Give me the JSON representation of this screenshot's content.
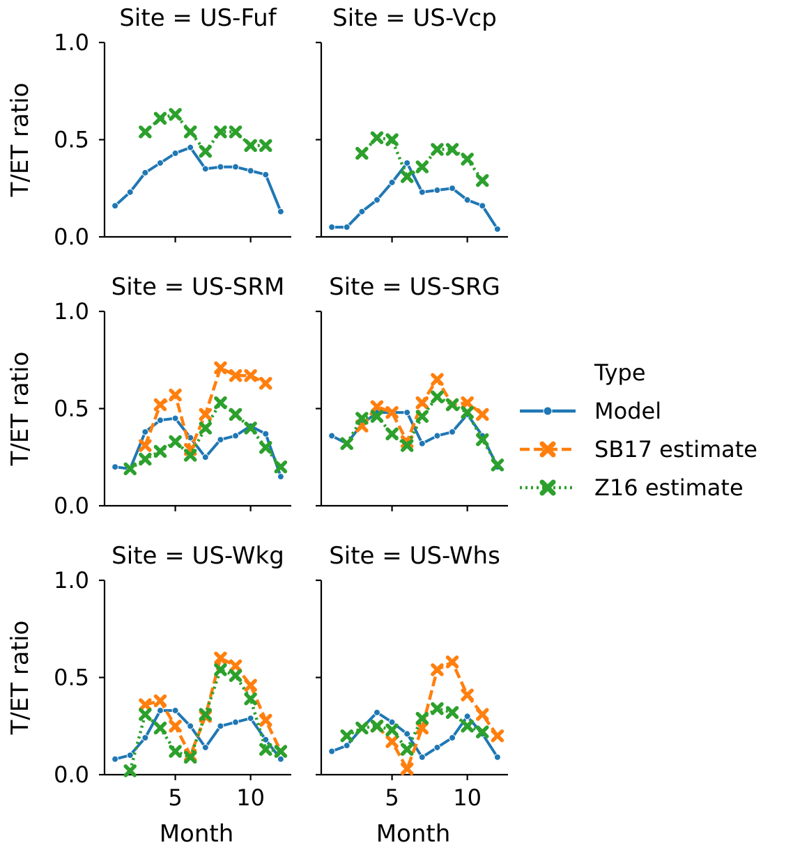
{
  "chart_data": {
    "type": "line",
    "ylabel": "T/ET ratio",
    "xlabel": "Month",
    "ylim": [
      0,
      1
    ],
    "xlim": [
      0.3,
      12.7
    ],
    "yticks": [
      "0.0",
      "0.5",
      "1.0"
    ],
    "xticks": [
      "5",
      "10"
    ],
    "legend": {
      "title": "Type",
      "position": "right",
      "entries": [
        "Model",
        "SB17 estimate",
        "Z16 estimate"
      ]
    },
    "colors": {
      "Model": "#1f77b4",
      "SB17 estimate": "#ff7f0e",
      "Z16 estimate": "#2ca02c"
    },
    "panels": [
      {
        "title": "Site = US-Fuf",
        "series": [
          {
            "name": "Model",
            "x": [
              1,
              2,
              3,
              4,
              5,
              6,
              7,
              8,
              9,
              10,
              11,
              12
            ],
            "y": [
              0.16,
              0.23,
              0.33,
              0.38,
              0.43,
              0.46,
              0.35,
              0.36,
              0.36,
              0.34,
              0.32,
              0.13
            ]
          },
          {
            "name": "Z16 estimate",
            "x": [
              3,
              4,
              5,
              6,
              7,
              8,
              9,
              10,
              11
            ],
            "y": [
              0.54,
              0.61,
              0.63,
              0.54,
              0.44,
              0.54,
              0.54,
              0.47,
              0.47
            ]
          }
        ]
      },
      {
        "title": "Site = US-Vcp",
        "series": [
          {
            "name": "Model",
            "x": [
              1,
              2,
              3,
              4,
              5,
              6,
              7,
              8,
              9,
              10,
              11,
              12
            ],
            "y": [
              0.05,
              0.05,
              0.13,
              0.19,
              0.28,
              0.38,
              0.23,
              0.24,
              0.25,
              0.19,
              0.16,
              0.04
            ]
          },
          {
            "name": "Z16 estimate",
            "x": [
              3,
              4,
              5,
              6,
              7,
              8,
              9,
              10,
              11
            ],
            "y": [
              0.43,
              0.51,
              0.5,
              0.31,
              0.36,
              0.45,
              0.45,
              0.4,
              0.29
            ]
          }
        ]
      },
      {
        "title": "Site = US-SRM",
        "series": [
          {
            "name": "Model",
            "x": [
              1,
              2,
              3,
              4,
              5,
              6,
              7,
              8,
              9,
              10,
              11,
              12
            ],
            "y": [
              0.2,
              0.19,
              0.38,
              0.44,
              0.45,
              0.35,
              0.25,
              0.34,
              0.36,
              0.41,
              0.37,
              0.15
            ]
          },
          {
            "name": "SB17 estimate",
            "x": [
              3,
              4,
              5,
              6,
              7,
              8,
              9,
              10,
              11
            ],
            "y": [
              0.31,
              0.52,
              0.57,
              0.29,
              0.47,
              0.71,
              0.67,
              0.67,
              0.63
            ]
          },
          {
            "name": "Z16 estimate",
            "x": [
              2,
              3,
              4,
              5,
              6,
              7,
              8,
              9,
              10,
              11,
              12
            ],
            "y": [
              0.19,
              0.24,
              0.28,
              0.33,
              0.26,
              0.4,
              0.53,
              0.47,
              0.4,
              0.3,
              0.2
            ]
          }
        ]
      },
      {
        "title": "Site = US-SRG",
        "series": [
          {
            "name": "Model",
            "x": [
              1,
              2,
              3,
              4,
              5,
              6,
              7,
              8,
              9,
              10,
              11,
              12
            ],
            "y": [
              0.36,
              0.32,
              0.42,
              0.48,
              0.48,
              0.48,
              0.32,
              0.36,
              0.38,
              0.47,
              0.36,
              0.2
            ]
          },
          {
            "name": "SB17 estimate",
            "x": [
              3,
              4,
              5,
              6,
              7,
              8,
              9,
              10,
              11
            ],
            "y": [
              0.41,
              0.51,
              0.48,
              0.33,
              0.53,
              0.65,
              0.52,
              0.53,
              0.47
            ]
          },
          {
            "name": "Z16 estimate",
            "x": [
              2,
              3,
              4,
              5,
              6,
              7,
              8,
              9,
              10,
              11,
              12
            ],
            "y": [
              0.32,
              0.45,
              0.46,
              0.37,
              0.31,
              0.46,
              0.56,
              0.52,
              0.48,
              0.34,
              0.21
            ]
          }
        ]
      },
      {
        "title": "Site = US-Wkg",
        "series": [
          {
            "name": "Model",
            "x": [
              1,
              2,
              3,
              4,
              5,
              6,
              7,
              8,
              9,
              10,
              11,
              12
            ],
            "y": [
              0.08,
              0.1,
              0.19,
              0.33,
              0.33,
              0.25,
              0.14,
              0.25,
              0.27,
              0.29,
              0.18,
              0.08
            ]
          },
          {
            "name": "SB17 estimate",
            "x": [
              3,
              4,
              5,
              6,
              7,
              8,
              9,
              10,
              11,
              12
            ],
            "y": [
              0.36,
              0.38,
              0.25,
              0.1,
              0.3,
              0.6,
              0.56,
              0.46,
              0.28,
              0.12
            ]
          },
          {
            "name": "Z16 estimate",
            "x": [
              2,
              3,
              4,
              5,
              6,
              7,
              8,
              9,
              10,
              11,
              12
            ],
            "y": [
              0.02,
              0.31,
              0.24,
              0.12,
              0.09,
              0.31,
              0.54,
              0.51,
              0.39,
              0.13,
              0.12
            ]
          }
        ]
      },
      {
        "title": "Site = US-Whs",
        "series": [
          {
            "name": "Model",
            "x": [
              1,
              2,
              3,
              4,
              5,
              6,
              7,
              8,
              9,
              10,
              11,
              12
            ],
            "y": [
              0.12,
              0.15,
              0.24,
              0.32,
              0.27,
              0.21,
              0.09,
              0.14,
              0.19,
              0.3,
              0.21,
              0.09
            ]
          },
          {
            "name": "SB17 estimate",
            "x": [
              4,
              5,
              6,
              7,
              8,
              9,
              10,
              11,
              12
            ],
            "y": [
              0.25,
              0.17,
              0.03,
              0.24,
              0.54,
              0.58,
              0.41,
              0.31,
              0.2
            ]
          },
          {
            "name": "Z16 estimate",
            "x": [
              2,
              3,
              4,
              5,
              6,
              7,
              8,
              9,
              10,
              11
            ],
            "y": [
              0.2,
              0.24,
              0.25,
              0.23,
              0.13,
              0.29,
              0.34,
              0.32,
              0.25,
              0.22
            ]
          }
        ]
      }
    ]
  }
}
